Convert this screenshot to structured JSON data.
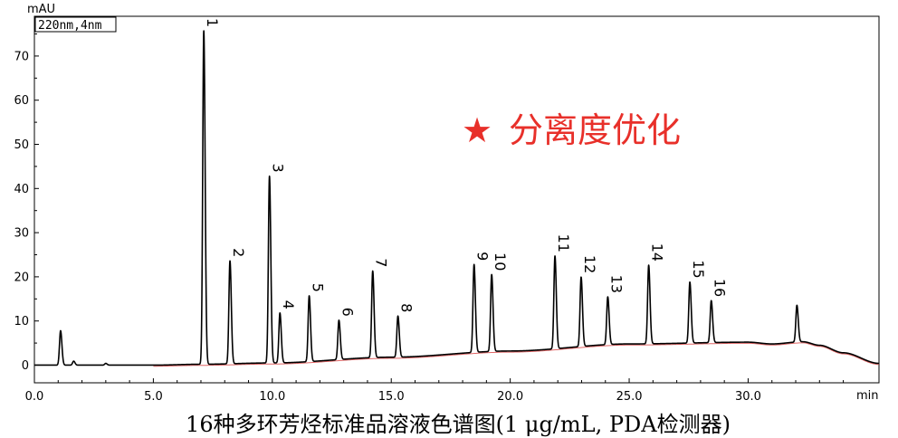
{
  "chart_data": {
    "type": "line",
    "ylabel": "mAU",
    "xlabel": "min",
    "channel_label": "220nm,4nm",
    "xlim": [
      0,
      35.5
    ],
    "ylim": [
      -4,
      79
    ],
    "x_ticks": [
      0,
      5,
      10,
      15,
      20,
      25,
      30
    ],
    "x_tick_labels": [
      "0.0",
      "5.0",
      "10.0",
      "15.0",
      "20.0",
      "25.0",
      "30.0"
    ],
    "y_ticks": [
      0,
      10,
      20,
      30,
      40,
      50,
      60,
      70
    ],
    "y_tick_labels": [
      "0",
      "10",
      "20",
      "30",
      "40",
      "50",
      "60",
      "70"
    ],
    "grid": false,
    "line_color": "#000000",
    "baseline_color": "#e06666",
    "baseline": {
      "x": [
        0,
        5,
        7,
        10,
        15,
        20,
        25,
        30,
        31,
        32.3,
        33,
        34,
        35.5
      ],
      "y": [
        0,
        0,
        0.2,
        0.5,
        1.8,
        3.2,
        4.8,
        5.2,
        4.8,
        5.3,
        4.5,
        2.8,
        0.4
      ]
    },
    "peaks": [
      {
        "label": "1",
        "x": 7.12,
        "height": 75.5
      },
      {
        "label": "2",
        "x": 8.22,
        "height": 23.3
      },
      {
        "label": "3",
        "x": 9.88,
        "height": 42.3
      },
      {
        "label": "4",
        "x": 10.32,
        "height": 11.3
      },
      {
        "label": "5",
        "x": 11.55,
        "height": 14.9
      },
      {
        "label": "6",
        "x": 12.8,
        "height": 8.9
      },
      {
        "label": "7",
        "x": 14.22,
        "height": 19.6
      },
      {
        "label": "8",
        "x": 15.28,
        "height": 9.3
      },
      {
        "label": "9",
        "x": 18.48,
        "height": 19.9
      },
      {
        "label": "10",
        "x": 19.22,
        "height": 17.4
      },
      {
        "label": "11",
        "x": 21.88,
        "height": 21.0
      },
      {
        "label": "12",
        "x": 22.98,
        "height": 15.7
      },
      {
        "label": "13",
        "x": 24.1,
        "height": 10.8
      },
      {
        "label": "14",
        "x": 25.82,
        "height": 17.8
      },
      {
        "label": "15",
        "x": 27.55,
        "height": 13.8
      },
      {
        "label": "16",
        "x": 28.45,
        "height": 9.5
      }
    ],
    "unlabeled_peaks": [
      {
        "x": 1.1,
        "height": 7.8
      },
      {
        "x": 1.65,
        "height": 0.9
      },
      {
        "x": 3.0,
        "height": 0.4
      },
      {
        "x": 32.05,
        "height": 8.3
      }
    ]
  },
  "annotation": {
    "star": "★",
    "text": "分离度优化",
    "color": "#e8302a"
  },
  "caption": "16种多环芳烃标准品溶液色谱图(1 μg/mL, PDA检测器)"
}
